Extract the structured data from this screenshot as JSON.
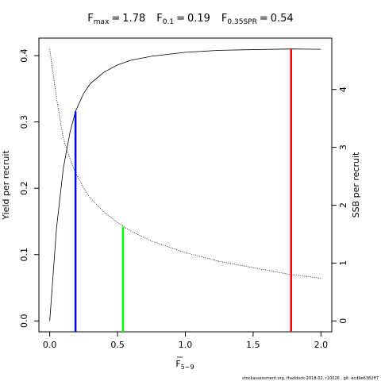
{
  "chart_data": {
    "type": "line",
    "x_label": {
      "text": "F",
      "sub": "5−9"
    },
    "y_label": "Yield per recruit",
    "y2_label": "SSB per recruit",
    "footer": "stockassessment.org, fhaddock-2018-02, r10026 , git: ecd9e6382ff7",
    "x": [
      0,
      0.05,
      0.1,
      0.15,
      0.19,
      0.25,
      0.3,
      0.4,
      0.5,
      0.6,
      0.75,
      1.0,
      1.25,
      1.5,
      1.78,
      2.0
    ],
    "series": [
      {
        "name": "Yield per recruit",
        "color": "#000000",
        "dash": "solid",
        "axis": "y",
        "values": [
          0,
          0.14,
          0.23,
          0.285,
          0.316,
          0.343,
          0.358,
          0.375,
          0.386,
          0.393,
          0.399,
          0.405,
          0.408,
          0.409,
          0.41,
          0.4095
        ]
      },
      {
        "name": "SSB per recruit",
        "color": "#000000",
        "dash": "dotted",
        "axis": "y2",
        "values": [
          4.7,
          3.85,
          3.15,
          2.8,
          2.56,
          2.3,
          2.12,
          1.88,
          1.7,
          1.55,
          1.38,
          1.18,
          1.03,
          0.92,
          0.8,
          0.74
        ]
      }
    ],
    "reference_points": [
      {
        "name": "F",
        "sub": "max",
        "eq": "=",
        "x": 1.78,
        "y": 0.41,
        "axis": "y",
        "color": "#ff0000"
      },
      {
        "name": "F",
        "sub": "0.1",
        "eq": "=",
        "x": 0.19,
        "y": 0.316,
        "axis": "y",
        "color": "#0000ff"
      },
      {
        "name": "F",
        "sub": "0.35SPR",
        "eq": "=",
        "x": 0.54,
        "y": 1.63,
        "axis": "y2",
        "color": "#00ff00"
      }
    ],
    "xlim": [
      -0.08,
      2.08
    ],
    "xticks": [
      {
        "value": 0,
        "label": "0.0"
      },
      0.5,
      {
        "value": 1,
        "label": "1.0"
      },
      1.5,
      {
        "value": 2,
        "label": "2.0"
      }
    ],
    "ylim": [
      -0.0164,
      0.4264
    ],
    "yticks": [
      {
        "value": 0,
        "label": "0.0"
      },
      0.1,
      0.2,
      0.3,
      0.4
    ],
    "y2lim": [
      -0.188,
      4.888
    ],
    "y2ticks": [
      0,
      1,
      2,
      3,
      4
    ]
  }
}
